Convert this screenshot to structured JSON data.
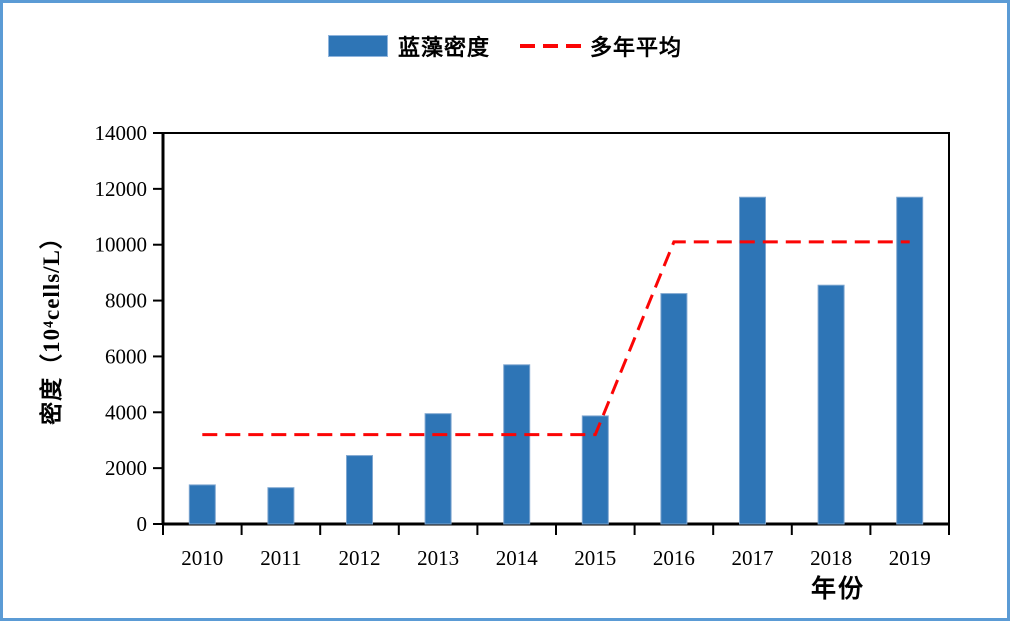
{
  "frame": {
    "border_color": "#5B9BD5",
    "background": "#FFFFFF"
  },
  "legend": {
    "position": "top"
  },
  "chart_data": {
    "type": "bar",
    "title": "",
    "categories": [
      "2010",
      "2011",
      "2012",
      "2013",
      "2014",
      "2015",
      "2016",
      "2017",
      "2018",
      "2019"
    ],
    "series": [
      {
        "name": "蓝藻密度",
        "type": "bar",
        "color": "#2E75B6",
        "border_color": "#7EA6D0",
        "values": [
          1400,
          1300,
          2450,
          3950,
          5700,
          3870,
          8250,
          11700,
          8550,
          11700
        ]
      },
      {
        "name": "多年平均",
        "type": "line",
        "style": "dashed",
        "color": "#FB0505",
        "values": [
          3200,
          3200,
          3200,
          3200,
          3200,
          3200,
          10100,
          10100,
          10100,
          10100
        ]
      }
    ],
    "xlabel": "年份",
    "ylabel": "密度（10⁴cells/L）",
    "ylim": [
      0,
      14000
    ],
    "yticks": [
      0,
      2000,
      4000,
      6000,
      8000,
      10000,
      12000,
      14000
    ],
    "axis_color": "#000000",
    "grid": false,
    "legend_position": "top"
  }
}
